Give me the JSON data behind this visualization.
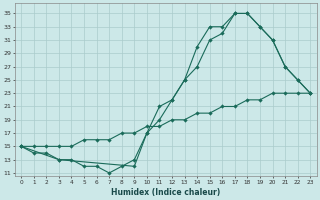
{
  "xlabel": "Humidex (Indice chaleur)",
  "xlim": [
    -0.5,
    23.5
  ],
  "ylim": [
    10.5,
    36.5
  ],
  "yticks": [
    11,
    13,
    15,
    17,
    19,
    21,
    23,
    25,
    27,
    29,
    31,
    33,
    35
  ],
  "xticks": [
    0,
    1,
    2,
    3,
    4,
    5,
    6,
    7,
    8,
    9,
    10,
    11,
    12,
    13,
    14,
    15,
    16,
    17,
    18,
    19,
    20,
    21,
    22,
    23
  ],
  "bg_color": "#cce8e8",
  "grid_color": "#aacccc",
  "line_color": "#1a6b5a",
  "line1_x": [
    0,
    1,
    2,
    3,
    4,
    5,
    6,
    7,
    8,
    9,
    10,
    11,
    12,
    13,
    14,
    15,
    16,
    17,
    18,
    19,
    20,
    21,
    22,
    23
  ],
  "line1_y": [
    15,
    14,
    14,
    13,
    13,
    12,
    12,
    11,
    12,
    13,
    17,
    19,
    22,
    25,
    27,
    31,
    32,
    35,
    35,
    33,
    31,
    27,
    25,
    23
  ],
  "line2_x": [
    0,
    3,
    9,
    10,
    11,
    12,
    13,
    14,
    15,
    16,
    17,
    18,
    19,
    20,
    21,
    22,
    23
  ],
  "line2_y": [
    15,
    13,
    12,
    17,
    21,
    22,
    25,
    30,
    33,
    33,
    35,
    35,
    33,
    31,
    27,
    25,
    23
  ],
  "line3_x": [
    0,
    1,
    2,
    3,
    4,
    5,
    6,
    7,
    8,
    9,
    10,
    11,
    12,
    13,
    14,
    15,
    16,
    17,
    18,
    19,
    20,
    21,
    22,
    23
  ],
  "line3_y": [
    15,
    15,
    15,
    15,
    15,
    16,
    16,
    16,
    17,
    17,
    18,
    18,
    19,
    19,
    20,
    20,
    21,
    21,
    22,
    22,
    23,
    23,
    23,
    23
  ]
}
